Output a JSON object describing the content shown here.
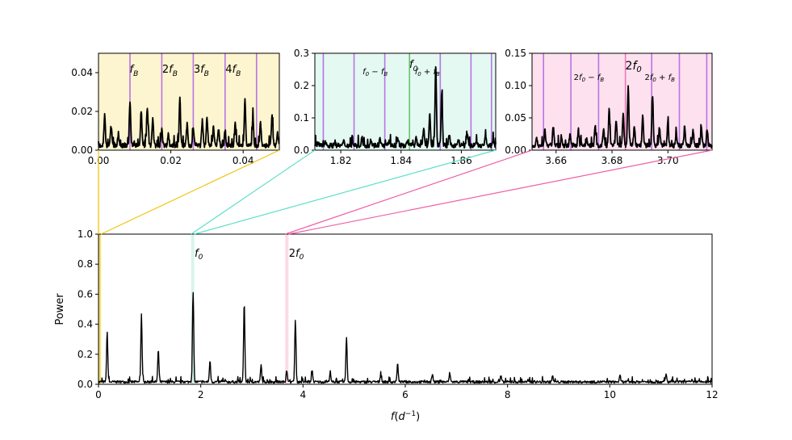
{
  "chart_data": [
    {
      "id": "inset_low",
      "type": "line",
      "xlim": [
        0.0,
        0.05
      ],
      "ylim": [
        0.0,
        0.05
      ],
      "xticks": [
        0.0,
        0.02,
        0.04
      ],
      "xtick_labels": [
        "0.00",
        "0.02",
        "0.04"
      ],
      "yticks": [
        0.0,
        0.02,
        0.04
      ],
      "ytick_labels": [
        "0.00",
        "0.02",
        "0.04"
      ],
      "background": "#fcf5cf",
      "vlines": [
        0.0087,
        0.0175,
        0.0262,
        0.035,
        0.0437
      ],
      "vline_color": "#b973e6",
      "labels": [
        {
          "text": "f",
          "sub": "B",
          "pre": "",
          "x": 0.0087
        },
        {
          "text": "f",
          "sub": "B",
          "pre": "2",
          "x": 0.0175
        },
        {
          "text": "f",
          "sub": "B",
          "pre": "3",
          "x": 0.0262
        },
        {
          "text": "f",
          "sub": "B",
          "pre": "4",
          "x": 0.035
        }
      ],
      "label_color": "#9b30d0",
      "peaks": [
        [
          0.0017,
          0.016
        ],
        [
          0.0035,
          0.01
        ],
        [
          0.0055,
          0.005
        ],
        [
          0.0087,
          0.022
        ],
        [
          0.0118,
          0.018
        ],
        [
          0.0135,
          0.02
        ],
        [
          0.015,
          0.014
        ],
        [
          0.0175,
          0.009
        ],
        [
          0.0193,
          0.006
        ],
        [
          0.0225,
          0.024
        ],
        [
          0.0245,
          0.011
        ],
        [
          0.0262,
          0.009
        ],
        [
          0.0287,
          0.013
        ],
        [
          0.03,
          0.015
        ],
        [
          0.0318,
          0.01
        ],
        [
          0.0332,
          0.008
        ],
        [
          0.035,
          0.008
        ],
        [
          0.0378,
          0.011
        ],
        [
          0.0405,
          0.024
        ],
        [
          0.0427,
          0.014
        ],
        [
          0.0448,
          0.012
        ],
        [
          0.048,
          0.016
        ],
        [
          0.0495,
          0.007
        ]
      ]
    },
    {
      "id": "inset_f0",
      "type": "line",
      "xlim": [
        1.8114,
        1.8714
      ],
      "ylim": [
        0.0,
        0.3
      ],
      "xticks": [
        1.82,
        1.84,
        1.86
      ],
      "xtick_labels": [
        "1.82",
        "1.84",
        "1.86"
      ],
      "yticks": [
        0.0,
        0.1,
        0.2,
        0.3
      ],
      "ytick_labels": [
        "0.0",
        "0.1",
        "0.2",
        "0.3"
      ],
      "background": "#e3f9f2",
      "vlines": [
        1.8142,
        1.8244,
        1.8346,
        1.853,
        1.8632,
        1.87
      ],
      "vline_color": "#b973e6",
      "f0_line": 1.8428,
      "f0_color": "#68c46a",
      "labels": [
        {
          "text": "f0 − fB",
          "x": 1.8346
        },
        {
          "text": "f0 + fB",
          "x": 1.853
        }
      ],
      "f0_label": "f0",
      "label_color": "#9b30d0",
      "peaks": [
        [
          1.8125,
          0.008
        ],
        [
          1.815,
          0.01
        ],
        [
          1.818,
          0.009
        ],
        [
          1.821,
          0.012
        ],
        [
          1.824,
          0.009
        ],
        [
          1.827,
          0.025
        ],
        [
          1.83,
          0.018
        ],
        [
          1.833,
          0.02
        ],
        [
          1.836,
          0.012
        ],
        [
          1.839,
          0.022
        ],
        [
          1.842,
          0.015
        ],
        [
          1.845,
          0.03
        ],
        [
          1.8475,
          0.055
        ],
        [
          1.8495,
          0.095
        ],
        [
          1.8515,
          0.24
        ],
        [
          1.8535,
          0.17
        ],
        [
          1.856,
          0.03
        ],
        [
          1.859,
          0.02
        ],
        [
          1.862,
          0.035
        ],
        [
          1.865,
          0.015
        ],
        [
          1.868,
          0.03
        ],
        [
          1.8705,
          0.015
        ]
      ]
    },
    {
      "id": "inset_2f0",
      "type": "line",
      "xlim": [
        3.6514,
        3.7158
      ],
      "ylim": [
        0.0,
        0.15
      ],
      "xticks": [
        3.66,
        3.68,
        3.7
      ],
      "xtick_labels": [
        "3.66",
        "3.68",
        "3.70"
      ],
      "yticks": [
        0.0,
        0.05,
        0.1,
        0.15
      ],
      "ytick_labels": [
        "0.00",
        "0.05",
        "0.10",
        "0.15"
      ],
      "background": "#fde1ee",
      "vlines": [
        3.6555,
        3.6653,
        3.6752,
        3.6942,
        3.7041,
        3.7139
      ],
      "vline_color": "#b973e6",
      "f0_line": 3.6848,
      "f0_color": "#e878b8",
      "labels": [
        {
          "text": "2f0 − fB",
          "x": 3.6752
        },
        {
          "text": "2f0 + fB",
          "x": 3.6942
        }
      ],
      "f0_label": "2f0",
      "f0_label_color": "#e8268a",
      "label_color": "#9b30d0",
      "peaks": [
        [
          3.653,
          0.01
        ],
        [
          3.656,
          0.025
        ],
        [
          3.659,
          0.03
        ],
        [
          3.662,
          0.012
        ],
        [
          3.665,
          0.018
        ],
        [
          3.668,
          0.022
        ],
        [
          3.671,
          0.01
        ],
        [
          3.674,
          0.03
        ],
        [
          3.677,
          0.025
        ],
        [
          3.679,
          0.055
        ],
        [
          3.6815,
          0.04
        ],
        [
          3.684,
          0.05
        ],
        [
          3.6858,
          0.09
        ],
        [
          3.688,
          0.03
        ],
        [
          3.691,
          0.045
        ],
        [
          3.6945,
          0.08
        ],
        [
          3.697,
          0.025
        ],
        [
          3.7,
          0.035
        ],
        [
          3.703,
          0.02
        ],
        [
          3.706,
          0.03
        ],
        [
          3.709,
          0.025
        ],
        [
          3.712,
          0.028
        ],
        [
          3.714,
          0.022
        ]
      ]
    },
    {
      "id": "main",
      "type": "line",
      "xlabel": "f(d−1)",
      "ylabel": "Power",
      "xlim": [
        0,
        12
      ],
      "ylim": [
        0.0,
        1.0
      ],
      "xticks": [
        0,
        2,
        4,
        6,
        8,
        10,
        12
      ],
      "xtick_labels": [
        "0",
        "2",
        "4",
        "6",
        "8",
        "10",
        "12"
      ],
      "yticks": [
        0.0,
        0.2,
        0.4,
        0.6,
        0.8,
        1.0
      ],
      "ytick_labels": [
        "0.0",
        "0.2",
        "0.4",
        "0.6",
        "0.8",
        "1.0"
      ],
      "f0_label": "f0",
      "f0_color": "#1a8a1a",
      "two_f0_label": "2f0",
      "two_f0_color": "#e8268a",
      "bands": [
        {
          "from": 0.0,
          "to": 0.05,
          "color": "#f4d442"
        },
        {
          "from": 1.8114,
          "to": 1.8714,
          "color": "#cdf3e6"
        },
        {
          "from": 3.6514,
          "to": 3.7158,
          "color": "#fbd2e2"
        }
      ],
      "peaks": [
        [
          0.17,
          0.33
        ],
        [
          0.84,
          0.45
        ],
        [
          1.17,
          0.21
        ],
        [
          1.85,
          0.6
        ],
        [
          2.18,
          0.14
        ],
        [
          2.85,
          0.53
        ],
        [
          3.18,
          0.11
        ],
        [
          3.68,
          0.08
        ],
        [
          3.85,
          0.41
        ],
        [
          4.18,
          0.07
        ],
        [
          4.53,
          0.06
        ],
        [
          4.85,
          0.3
        ],
        [
          5.52,
          0.05
        ],
        [
          5.85,
          0.12
        ],
        [
          6.53,
          0.05
        ],
        [
          6.87,
          0.06
        ],
        [
          7.87,
          0.04
        ],
        [
          8.88,
          0.04
        ],
        [
          10.2,
          0.04
        ],
        [
          11.1,
          0.05
        ]
      ],
      "noise_level": 0.02,
      "connector_colors": [
        "#f2c40f",
        "#5ce0c8",
        "#ee5fa7"
      ]
    }
  ]
}
